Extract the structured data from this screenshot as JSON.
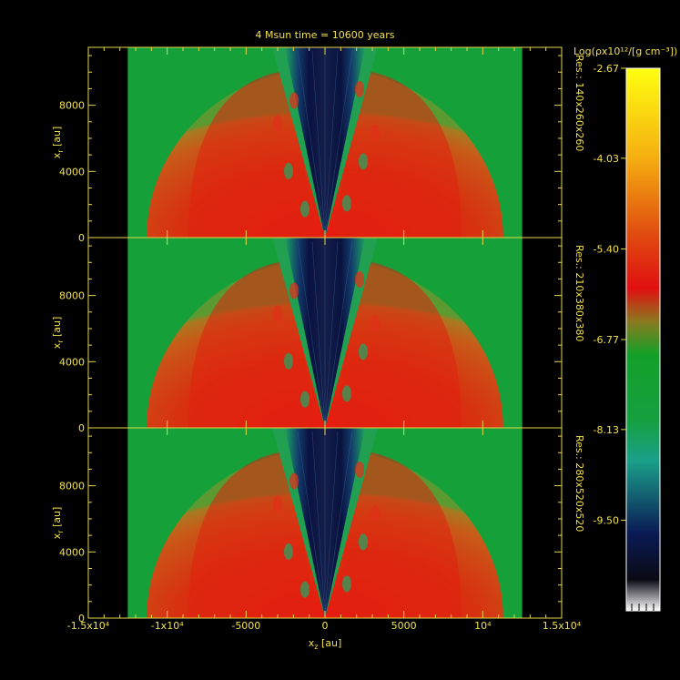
{
  "title": "4 Msun time = 10600 years",
  "colorbar": {
    "label": "Log(ρx10¹²/[g cm⁻³])",
    "ticks": [
      "-2.67",
      "-4.03",
      "-5.40",
      "-6.77",
      "-8.13",
      "-9.50"
    ],
    "range": [
      -10.87,
      -2.67
    ],
    "scale": [
      {
        "v": -10.87,
        "c": "#ffffff"
      },
      {
        "v": -10.4,
        "c": "#0a0a14"
      },
      {
        "v": -9.7,
        "c": "#0a1a55"
      },
      {
        "v": -8.6,
        "c": "#1aa08a"
      },
      {
        "v": -8.0,
        "c": "#15a040"
      },
      {
        "v": -7.0,
        "c": "#13a028"
      },
      {
        "v": -6.5,
        "c": "#8a7a20"
      },
      {
        "v": -6.0,
        "c": "#e01010"
      },
      {
        "v": -5.2,
        "c": "#e04a10"
      },
      {
        "v": -4.0,
        "c": "#f5b010"
      },
      {
        "v": -2.67,
        "c": "#ffff10"
      }
    ]
  },
  "chart_data": {
    "type": "heatmap",
    "title": "4 Msun time = 10600 years",
    "xlabel": "x_z [au]",
    "ylabel": "x_r [au]",
    "xlim": [
      -15000,
      15000
    ],
    "ylim": [
      0,
      11500
    ],
    "x_tick_labels": [
      "-1.5x10⁴",
      "-1x10⁴",
      "-5000",
      "0",
      "5000",
      "10⁴",
      "1.5x10⁴"
    ],
    "x_ticks": [
      -15000,
      -10000,
      -5000,
      0,
      5000,
      10000,
      15000
    ],
    "y_tick_labels": [
      "0",
      "4000",
      "8000"
    ],
    "y_ticks": [
      0,
      4000,
      8000
    ],
    "data_extent_x": [
      -12500,
      12500
    ],
    "panels": [
      {
        "resolution": "Res.: 140x260x260",
        "shell_radius": 11300
      },
      {
        "resolution": "Res.: 210x380x380",
        "shell_radius": 11300
      },
      {
        "resolution": "Res.: 280x520x520",
        "shell_radius": 11300
      }
    ],
    "colorbar_range": [
      -10.87,
      -2.67
    ]
  }
}
